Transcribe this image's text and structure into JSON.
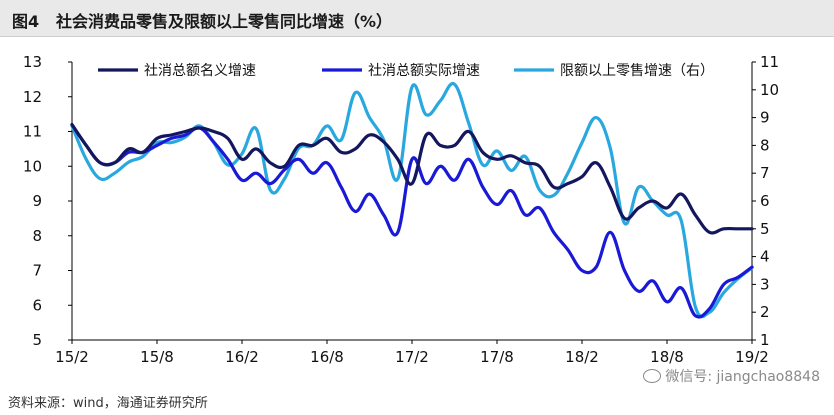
{
  "figure_label": "图4",
  "title": "社会消费品零售及限额以上零售同比增速（%）",
  "source": "资料来源：wind，海通证券研究所",
  "watermark": "微信号: jiangchao8848",
  "chart_data": {
    "type": "line",
    "title": "社会消费品零售及限额以上零售同比增速（%）",
    "x_tick_labels": [
      "15/2",
      "15/8",
      "16/2",
      "16/8",
      "17/2",
      "17/8",
      "18/2",
      "18/8",
      "19/2"
    ],
    "x_range": [
      0,
      48
    ],
    "y_left": {
      "min": 5,
      "max": 13,
      "ticks": [
        5,
        6,
        7,
        8,
        9,
        10,
        11,
        12,
        13
      ]
    },
    "y_right": {
      "min": 1,
      "max": 11,
      "ticks": [
        1,
        2,
        3,
        4,
        5,
        6,
        7,
        8,
        9,
        10,
        11
      ]
    },
    "grid": false,
    "legend_position": "top",
    "series": [
      {
        "name": "社消总额名义增速",
        "axis": "left",
        "color": "#15175e",
        "x": [
          0,
          1,
          2,
          3,
          4,
          5,
          6,
          7,
          8,
          9,
          10,
          11,
          12,
          13,
          14,
          15,
          16,
          17,
          18,
          19,
          20,
          21,
          22,
          23,
          24,
          25,
          26,
          27,
          28,
          29,
          30,
          31,
          32,
          33,
          34,
          35,
          36,
          37,
          38,
          39,
          40,
          41,
          42,
          43,
          44,
          45,
          46,
          47,
          48
        ],
        "values": [
          11.2,
          10.6,
          10.1,
          10.1,
          10.5,
          10.4,
          10.8,
          10.9,
          11.0,
          11.1,
          11.0,
          10.8,
          10.2,
          10.5,
          10.1,
          10.0,
          10.6,
          10.6,
          10.8,
          10.4,
          10.5,
          10.9,
          10.7,
          10.2,
          9.5,
          10.9,
          10.6,
          10.6,
          11.0,
          10.4,
          10.2,
          10.3,
          10.1,
          10.0,
          9.4,
          9.5,
          9.7,
          10.1,
          9.4,
          8.5,
          8.8,
          9.0,
          8.8,
          9.2,
          8.6,
          8.1,
          8.2,
          8.2,
          8.2
        ]
      },
      {
        "name": "社消总额实际增速",
        "axis": "left",
        "color": "#1a1ad6",
        "x": [
          0,
          1,
          2,
          3,
          4,
          5,
          6,
          7,
          8,
          9,
          10,
          11,
          12,
          13,
          14,
          15,
          16,
          17,
          18,
          19,
          20,
          21,
          22,
          23,
          24,
          25,
          26,
          27,
          28,
          29,
          30,
          31,
          32,
          33,
          34,
          35,
          36,
          37,
          38,
          39,
          40,
          41,
          42,
          43,
          44,
          45,
          46,
          47,
          48
        ],
        "values": [
          11.2,
          10.6,
          10.1,
          10.1,
          10.4,
          10.4,
          10.6,
          10.8,
          10.9,
          11.1,
          10.7,
          10.2,
          9.6,
          9.8,
          9.5,
          9.9,
          10.2,
          9.8,
          10.1,
          9.4,
          8.7,
          9.2,
          8.6,
          8.1,
          10.2,
          9.5,
          10.0,
          9.6,
          10.2,
          9.4,
          8.9,
          9.3,
          8.6,
          8.8,
          8.1,
          7.6,
          7.0,
          7.1,
          8.1,
          7.0,
          6.4,
          6.7,
          6.1,
          6.5,
          5.7,
          5.9,
          6.6,
          6.8,
          7.1
        ]
      },
      {
        "name": "限额以上零售增速（右）",
        "axis": "right",
        "color": "#29a8e0",
        "x": [
          0,
          1,
          2,
          3,
          4,
          5,
          6,
          7,
          8,
          9,
          10,
          11,
          12,
          13,
          14,
          15,
          16,
          17,
          18,
          19,
          20,
          21,
          22,
          23,
          24,
          25,
          26,
          27,
          28,
          29,
          30,
          31,
          32,
          33,
          34,
          35,
          36,
          37,
          38,
          39,
          40,
          41,
          42,
          43,
          44,
          45,
          46,
          47,
          48
        ],
        "values": [
          8.7,
          7.5,
          6.8,
          7.0,
          7.4,
          7.6,
          8.1,
          8.1,
          8.3,
          8.7,
          8.1,
          7.3,
          7.7,
          8.6,
          6.4,
          6.8,
          7.9,
          8.0,
          8.7,
          8.2,
          9.9,
          9.0,
          8.2,
          6.8,
          10.1,
          9.1,
          9.6,
          10.2,
          8.8,
          7.3,
          7.8,
          7.1,
          7.6,
          6.4,
          6.2,
          7.0,
          8.1,
          9.0,
          7.9,
          5.2,
          6.5,
          6.0,
          5.5,
          5.3,
          2.2,
          2.0,
          2.7,
          3.2,
          3.6
        ]
      }
    ]
  }
}
